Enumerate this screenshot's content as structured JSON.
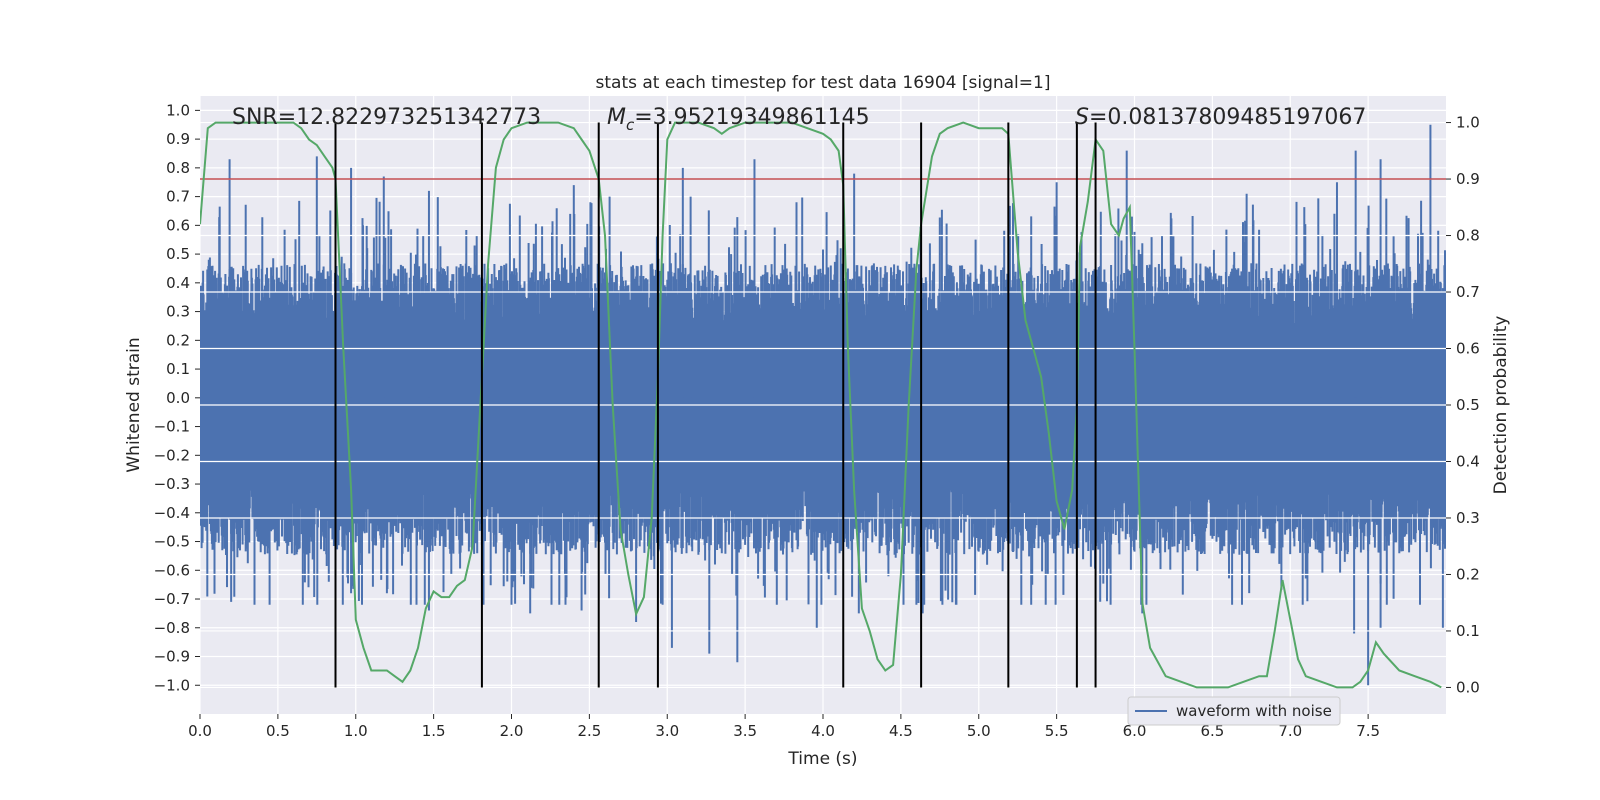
{
  "chart_data": {
    "type": "line",
    "title": "stats at each timestep for test data 16904 [signal=1]",
    "xlabel": "Time (s)",
    "ylabel": "Whitened strain",
    "y2label": "Detection probability",
    "xlim": [
      0.0,
      8.0
    ],
    "ylim": [
      -1.1,
      1.05
    ],
    "y2lim": [
      -0.047,
      1.047
    ],
    "xticks": [
      "0.0",
      "0.5",
      "1.0",
      "1.5",
      "2.0",
      "2.5",
      "3.0",
      "3.5",
      "4.0",
      "4.5",
      "5.0",
      "5.5",
      "6.0",
      "6.5",
      "7.0",
      "7.5"
    ],
    "yticks": [
      "1.0",
      "0.9",
      "0.8",
      "0.7",
      "0.6",
      "0.5",
      "0.4",
      "0.3",
      "0.2",
      "0.1",
      "0.0",
      "−0.1",
      "−0.2",
      "−0.3",
      "−0.4",
      "−0.5",
      "−0.6",
      "−0.7",
      "−0.8",
      "−0.9",
      "−1.0"
    ],
    "y2ticks": [
      "1.0",
      "0.9",
      "0.8",
      "0.7",
      "0.6",
      "0.5",
      "0.4",
      "0.3",
      "0.2",
      "0.1",
      "0.0"
    ],
    "annotations": {
      "snr": "SNR=12.822973251342773",
      "mc_symbol": "M",
      "mc_sub": "c",
      "mc_value": "=3.95219349861145",
      "s_symbol": "S",
      "s_value": "=0.08137809485197067"
    },
    "threshold": {
      "value": 0.9,
      "axis": "y2",
      "color": "#c44e52"
    },
    "vertical_markers": [
      0.87,
      1.81,
      2.56,
      2.94,
      4.13,
      4.63,
      5.19,
      5.63,
      5.75
    ],
    "waveform": {
      "name": "waveform with noise",
      "color": "#4c72b0",
      "sample_rate": 1024,
      "band_upper": 0.36,
      "band_lower": -0.42,
      "spikes": [
        [
          0.19,
          0.83
        ],
        [
          0.2,
          -0.71
        ],
        [
          0.75,
          0.84
        ],
        [
          0.97,
          0.8
        ],
        [
          0.97,
          -0.68
        ],
        [
          1.18,
          0.77
        ],
        [
          1.2,
          -0.68
        ],
        [
          1.47,
          0.72
        ],
        [
          1.47,
          -0.74
        ],
        [
          2.12,
          -0.75
        ],
        [
          2.4,
          0.74
        ],
        [
          2.45,
          -0.74
        ],
        [
          2.8,
          -0.78
        ],
        [
          3.03,
          -0.87
        ],
        [
          3.1,
          0.8
        ],
        [
          3.15,
          0.7
        ],
        [
          3.27,
          -0.89
        ],
        [
          3.45,
          -0.92
        ],
        [
          3.56,
          0.83
        ],
        [
          3.96,
          -0.8
        ],
        [
          4.2,
          0.78
        ],
        [
          4.23,
          -0.75
        ],
        [
          4.64,
          -0.75
        ],
        [
          5.5,
          0.75
        ],
        [
          5.95,
          0.86
        ],
        [
          6.05,
          -0.75
        ],
        [
          6.72,
          0.71
        ],
        [
          7.3,
          0.75
        ],
        [
          7.42,
          0.86
        ],
        [
          7.41,
          -0.82
        ],
        [
          7.5,
          -1.0
        ],
        [
          7.58,
          0.83
        ],
        [
          7.58,
          -0.8
        ],
        [
          7.9,
          0.95
        ],
        [
          7.98,
          -0.8
        ]
      ]
    },
    "probability": {
      "color": "#55a868",
      "x": [
        0.0,
        0.05,
        0.1,
        0.15,
        0.2,
        0.3,
        0.4,
        0.5,
        0.6,
        0.65,
        0.7,
        0.75,
        0.8,
        0.85,
        0.87,
        0.92,
        0.97,
        1.0,
        1.05,
        1.1,
        1.15,
        1.2,
        1.25,
        1.3,
        1.35,
        1.4,
        1.45,
        1.5,
        1.55,
        1.6,
        1.65,
        1.7,
        1.75,
        1.81,
        1.85,
        1.9,
        1.95,
        2.0,
        2.1,
        2.2,
        2.3,
        2.4,
        2.45,
        2.5,
        2.56,
        2.6,
        2.65,
        2.7,
        2.75,
        2.8,
        2.85,
        2.9,
        2.94,
        2.97,
        3.0,
        3.05,
        3.1,
        3.2,
        3.3,
        3.35,
        3.4,
        3.5,
        3.6,
        3.7,
        3.8,
        3.9,
        4.0,
        4.05,
        4.1,
        4.13,
        4.16,
        4.2,
        4.25,
        4.3,
        4.35,
        4.4,
        4.45,
        4.5,
        4.55,
        4.6,
        4.63,
        4.7,
        4.75,
        4.8,
        4.9,
        5.0,
        5.05,
        5.1,
        5.15,
        5.19,
        5.25,
        5.3,
        5.35,
        5.4,
        5.45,
        5.5,
        5.55,
        5.6,
        5.63,
        5.65,
        5.7,
        5.75,
        5.8,
        5.85,
        5.9,
        5.93,
        5.97,
        6.0,
        6.05,
        6.1,
        6.2,
        6.3,
        6.4,
        6.5,
        6.6,
        6.7,
        6.8,
        6.85,
        6.9,
        6.95,
        7.0,
        7.05,
        7.1,
        7.2,
        7.3,
        7.4,
        7.45,
        7.5,
        7.55,
        7.6,
        7.7,
        7.8,
        7.9,
        7.97
      ],
      "y": [
        0.82,
        0.99,
        1.0,
        1.0,
        1.0,
        1.0,
        1.0,
        1.0,
        1.0,
        0.99,
        0.97,
        0.96,
        0.94,
        0.92,
        0.9,
        0.6,
        0.35,
        0.12,
        0.07,
        0.03,
        0.03,
        0.03,
        0.02,
        0.01,
        0.03,
        0.07,
        0.14,
        0.17,
        0.16,
        0.16,
        0.18,
        0.19,
        0.25,
        0.55,
        0.75,
        0.92,
        0.97,
        0.99,
        1.0,
        1.0,
        1.0,
        0.99,
        0.97,
        0.95,
        0.9,
        0.8,
        0.5,
        0.28,
        0.2,
        0.13,
        0.16,
        0.3,
        0.55,
        0.8,
        0.97,
        1.0,
        1.0,
        1.0,
        0.99,
        0.98,
        0.99,
        1.0,
        1.0,
        1.0,
        1.0,
        0.99,
        0.98,
        0.97,
        0.95,
        0.89,
        0.6,
        0.35,
        0.14,
        0.1,
        0.05,
        0.03,
        0.04,
        0.2,
        0.5,
        0.74,
        0.82,
        0.94,
        0.98,
        0.99,
        1.0,
        0.99,
        0.99,
        0.99,
        0.99,
        0.98,
        0.77,
        0.65,
        0.6,
        0.55,
        0.45,
        0.33,
        0.28,
        0.35,
        0.5,
        0.78,
        0.86,
        0.97,
        0.95,
        0.82,
        0.8,
        0.83,
        0.85,
        0.6,
        0.15,
        0.07,
        0.02,
        0.01,
        0.0,
        0.0,
        0.0,
        0.01,
        0.02,
        0.02,
        0.1,
        0.19,
        0.12,
        0.05,
        0.02,
        0.01,
        0.0,
        0.0,
        0.01,
        0.03,
        0.08,
        0.06,
        0.03,
        0.02,
        0.01,
        0.0
      ]
    },
    "legend": {
      "label": "waveform with noise",
      "position": "lower-right"
    },
    "grid": true
  }
}
